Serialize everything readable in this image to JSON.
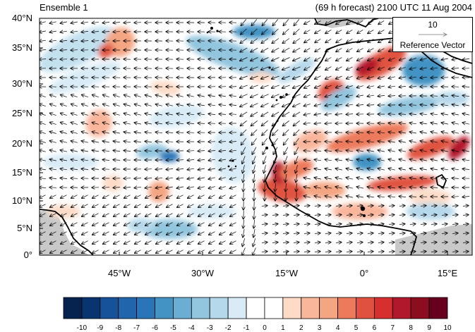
{
  "header": {
    "left_title": "Ensemble 1",
    "right_title": "(69 h forecast) 2100 UTC 11 Aug 2004"
  },
  "map": {
    "lat_labels": [
      "40°N",
      "35°N",
      "30°N",
      "25°N",
      "20°N",
      "15°N",
      "10°N",
      "5°N",
      "0°"
    ],
    "lon_labels": [
      "45°W",
      "30°W",
      "15°W",
      "0°",
      "15°E"
    ],
    "colors": {
      "land_missing": "#c8c8c8",
      "coast": "#000000",
      "frame": "#000000"
    }
  },
  "reference_vector": {
    "magnitude": "10",
    "label": "Reference Vector"
  },
  "colorbar": {
    "labels": [
      "-10",
      "-9",
      "-8",
      "-7",
      "-6",
      "-5",
      "-4",
      "-3",
      "-2",
      "-1",
      "0",
      "1",
      "2",
      "3",
      "4",
      "5",
      "6",
      "7",
      "8",
      "9",
      "10"
    ],
    "colors": [
      "#06224e",
      "#083570",
      "#15529a",
      "#2166ac",
      "#2a74b8",
      "#4393c3",
      "#6aaed3",
      "#92c5de",
      "#b5d8ea",
      "#d8ebf6",
      "#ffffff",
      "#ffffff",
      "#fddbc7",
      "#f9b69b",
      "#f4a582",
      "#ec7a5b",
      "#e0523f",
      "#d6302e",
      "#b2182b",
      "#8b0d1f",
      "#67001f"
    ]
  }
}
